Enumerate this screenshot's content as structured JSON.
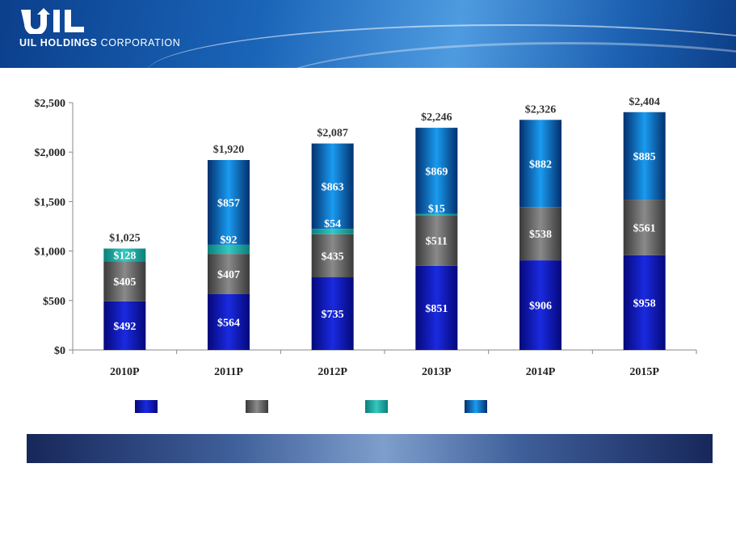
{
  "brand": {
    "logo_name": "UIL",
    "company_bold": "UIL HOLDINGS",
    "company_rest": " CORPORATION"
  },
  "chart_data": {
    "type": "bar",
    "stacked": true,
    "categories": [
      "2010P",
      "2011P",
      "2012P",
      "2013P",
      "2014P",
      "2015P"
    ],
    "series": [
      {
        "values": [
          492,
          564,
          735,
          851,
          906,
          958
        ],
        "color": "#0a10b8"
      },
      {
        "values": [
          405,
          407,
          435,
          511,
          538,
          561
        ],
        "color": "#5a5a5a"
      },
      {
        "values": [
          128,
          92,
          54,
          15,
          0,
          0
        ],
        "color": "#17a8a0"
      },
      {
        "values": [
          0,
          857,
          863,
          869,
          882,
          885
        ],
        "color": "#0b78d0"
      }
    ],
    "totals": [
      "$1,025",
      "$1,920",
      "$2,087",
      "$2,246",
      "$2,326",
      "$2,404"
    ],
    "value_labels": [
      [
        "$492",
        "$564",
        "$735",
        "$851",
        "$906",
        "$958"
      ],
      [
        "$405",
        "$407",
        "$435",
        "$511",
        "$538",
        "$561"
      ],
      [
        "$128",
        "$92",
        "$54",
        "$15",
        "",
        ""
      ],
      [
        "",
        "$857",
        "$863",
        "$869",
        "$882",
        "$885"
      ]
    ],
    "ylim": [
      0,
      2500
    ],
    "yticks": [
      0,
      500,
      1000,
      1500,
      2000,
      2500
    ],
    "ytick_labels": [
      "$0",
      "$500",
      "$1,000",
      "$1,500",
      "$2,000",
      "$2,500"
    ],
    "title": "",
    "xlabel": "",
    "ylabel": "",
    "grid": false,
    "legend": {
      "position": "bottom",
      "labels": [
        "",
        "",
        "",
        ""
      ]
    }
  },
  "banner": {
    "text": ""
  }
}
